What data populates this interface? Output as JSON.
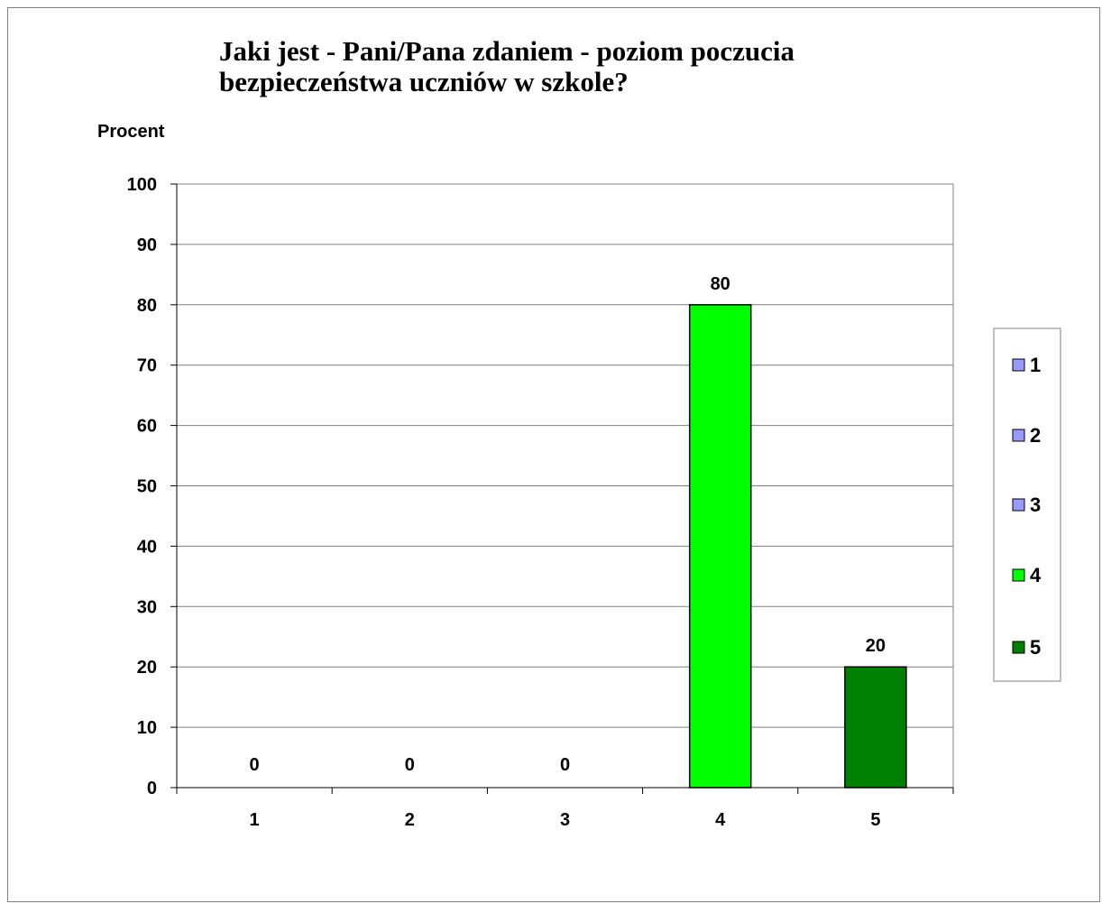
{
  "chart_data": {
    "type": "bar",
    "title": "Jaki jest - Pani/Pana zdaniem - poziom poczucia bezpieczeństwa uczniów w szkole?",
    "xlabel": "",
    "ylabel": "Procent",
    "categories": [
      "1",
      "2",
      "3",
      "4",
      "5"
    ],
    "values": [
      0,
      0,
      0,
      80,
      20
    ],
    "data_labels": [
      "0",
      "0",
      "0",
      "80",
      "20"
    ],
    "colors": [
      "#9999ff",
      "#9999ff",
      "#9999ff",
      "#00ff00",
      "#008000"
    ],
    "ylim": [
      0,
      100
    ],
    "yticks": [
      0,
      10,
      20,
      30,
      40,
      50,
      60,
      70,
      80,
      90,
      100
    ],
    "grid": true,
    "legend": {
      "placement": "right",
      "entries": [
        {
          "label": "1",
          "color": "#9999ff"
        },
        {
          "label": "2",
          "color": "#9999ff"
        },
        {
          "label": "3",
          "color": "#9999ff"
        },
        {
          "label": "4",
          "color": "#00ff00"
        },
        {
          "label": "5",
          "color": "#008000"
        }
      ]
    }
  }
}
